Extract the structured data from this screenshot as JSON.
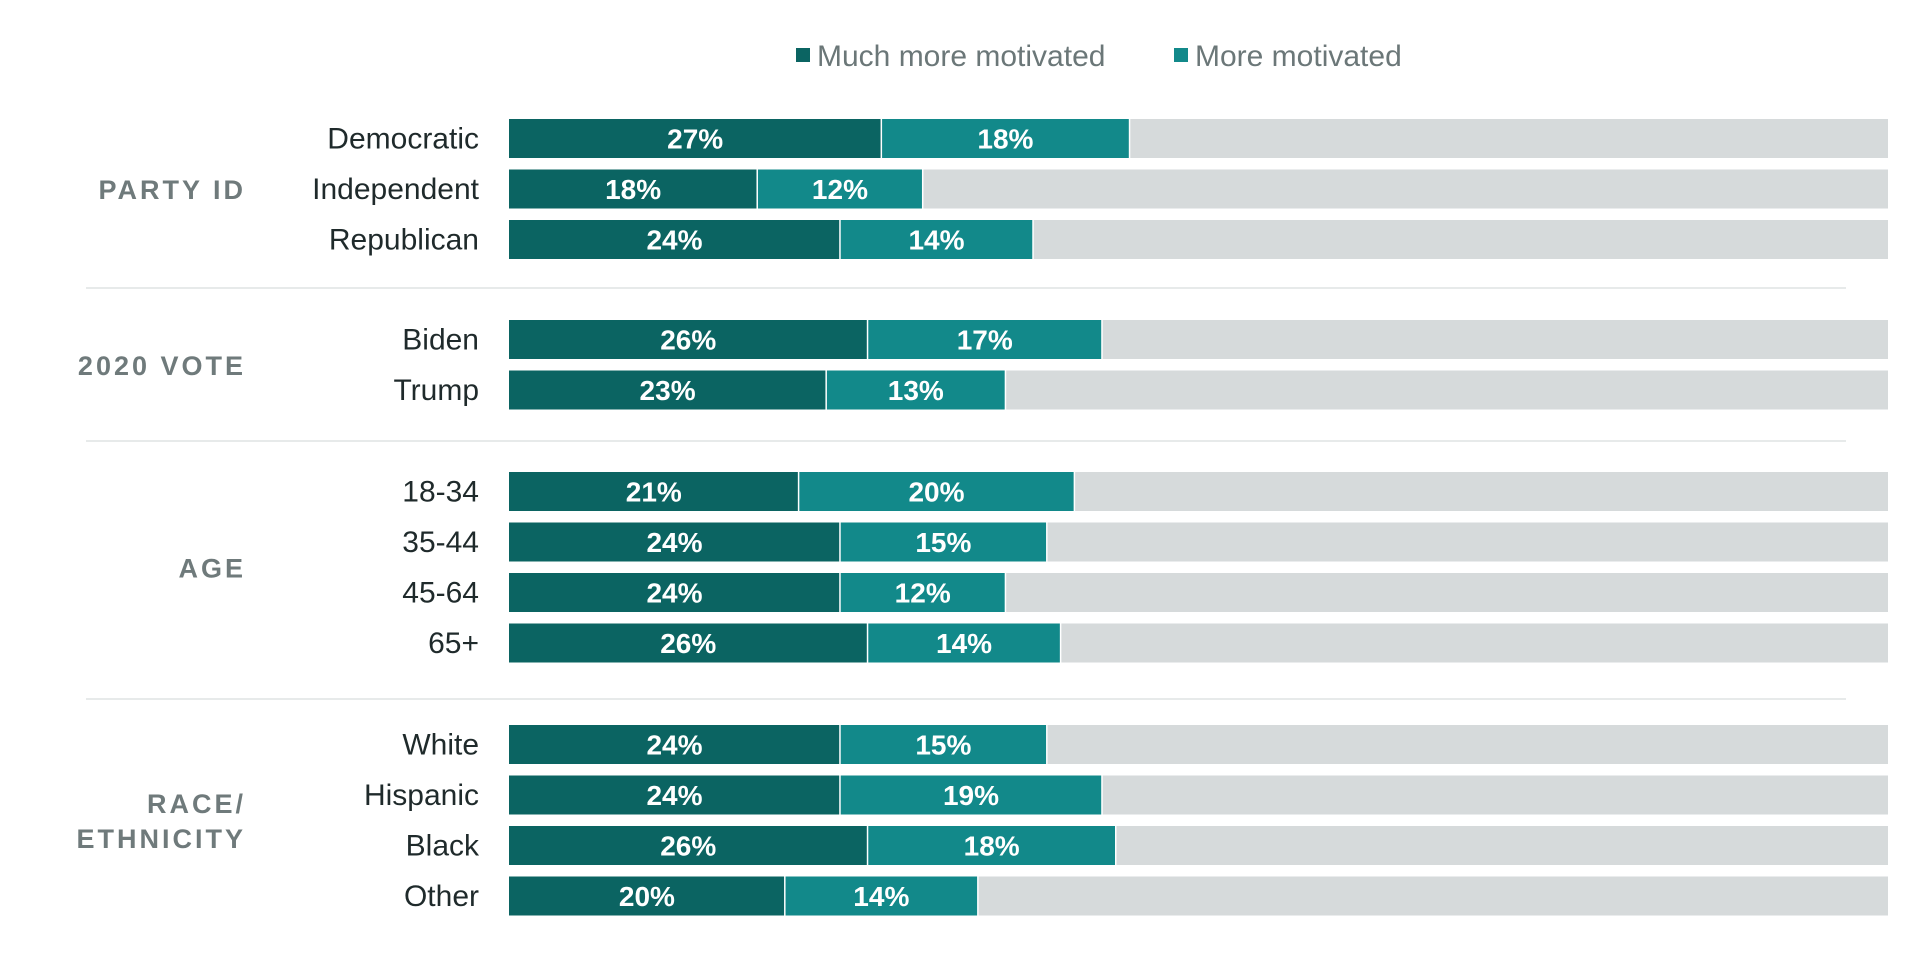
{
  "chart_data": {
    "type": "bar",
    "orientation": "horizontal",
    "stacked": true,
    "xlim": [
      0,
      100
    ],
    "legend_position": "top",
    "series": [
      {
        "name": "Much more motivated",
        "color": "#0b6462"
      },
      {
        "name": "More motivated",
        "color": "#12898a"
      }
    ],
    "remainder_color": "#d6dadb",
    "groups": [
      {
        "label_lines": [
          "PARTY ID"
        ],
        "rows": [
          {
            "label": "Democratic",
            "values": [
              27,
              18
            ],
            "value_labels": [
              "27%",
              "18%"
            ]
          },
          {
            "label": "Independent",
            "values": [
              18,
              12
            ],
            "value_labels": [
              "18%",
              "12%"
            ]
          },
          {
            "label": "Republican",
            "values": [
              24,
              14
            ],
            "value_labels": [
              "24%",
              "14%"
            ]
          }
        ]
      },
      {
        "label_lines": [
          "2020 VOTE"
        ],
        "rows": [
          {
            "label": "Biden",
            "values": [
              26,
              17
            ],
            "value_labels": [
              "26%",
              "17%"
            ]
          },
          {
            "label": "Trump",
            "values": [
              23,
              13
            ],
            "value_labels": [
              "23%",
              "13%"
            ]
          }
        ]
      },
      {
        "label_lines": [
          "AGE"
        ],
        "rows": [
          {
            "label": "18-34",
            "values": [
              21,
              20
            ],
            "value_labels": [
              "21%",
              "20%"
            ]
          },
          {
            "label": "35-44",
            "values": [
              24,
              15
            ],
            "value_labels": [
              "24%",
              "15%"
            ]
          },
          {
            "label": "45-64",
            "values": [
              24,
              12
            ],
            "value_labels": [
              "24%",
              "12%"
            ]
          },
          {
            "label": "65+",
            "values": [
              26,
              14
            ],
            "value_labels": [
              "26%",
              "14%"
            ]
          }
        ]
      },
      {
        "label_lines": [
          "RACE/",
          "ETHNICITY"
        ],
        "rows": [
          {
            "label": "White",
            "values": [
              24,
              15
            ],
            "value_labels": [
              "24%",
              "15%"
            ]
          },
          {
            "label": "Hispanic",
            "values": [
              24,
              19
            ],
            "value_labels": [
              "24%",
              "19%"
            ]
          },
          {
            "label": "Black",
            "values": [
              26,
              18
            ],
            "value_labels": [
              "26%",
              "18%"
            ]
          },
          {
            "label": "Other",
            "values": [
              20,
              14
            ],
            "value_labels": [
              "20%",
              "14%"
            ]
          }
        ]
      }
    ]
  }
}
